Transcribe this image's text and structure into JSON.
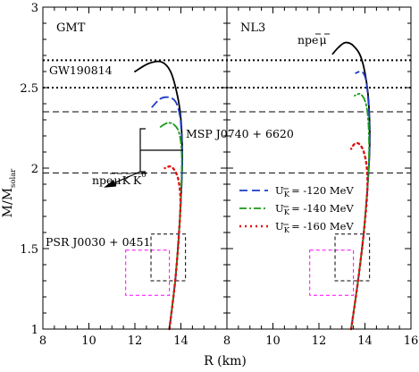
{
  "chart_data": {
    "type": "line",
    "xlabel": "R (km)",
    "ylabel": "M/M",
    "ylabel_sub": "solar",
    "x_ticks_left": [
      "8",
      "10",
      "12",
      "14"
    ],
    "x_ticks_right": [
      "8",
      "10",
      "12",
      "14",
      "16"
    ],
    "y_ticks": [
      "1",
      "1.5",
      "2",
      "2.5",
      "3"
    ],
    "xlim": [
      8,
      16
    ],
    "ylim": [
      1,
      3
    ],
    "panels": [
      {
        "label": "GMT",
        "series": [
          {
            "key": "npe_mu",
            "points": [
              [
                13.5,
                1.0
              ],
              [
                13.75,
                1.3
              ],
              [
                13.92,
                1.6
              ],
              [
                14.03,
                1.9
              ],
              [
                14.06,
                2.1
              ],
              [
                14.0,
                2.3
              ],
              [
                13.85,
                2.45
              ],
              [
                13.55,
                2.6
              ],
              [
                13.15,
                2.66
              ],
              [
                12.6,
                2.65
              ],
              [
                12.0,
                2.6
              ]
            ]
          },
          {
            "key": "UK_120",
            "points": [
              [
                13.5,
                1.0
              ],
              [
                13.75,
                1.3
              ],
              [
                13.92,
                1.6
              ],
              [
                14.03,
                1.9
              ],
              [
                14.05,
                2.1
              ],
              [
                13.98,
                2.3
              ],
              [
                13.78,
                2.41
              ],
              [
                13.45,
                2.44
              ],
              [
                13.1,
                2.43
              ],
              [
                12.75,
                2.38
              ]
            ]
          },
          {
            "key": "UK_140",
            "points": [
              [
                13.5,
                1.0
              ],
              [
                13.75,
                1.3
              ],
              [
                13.92,
                1.6
              ],
              [
                14.02,
                1.9
              ],
              [
                14.03,
                2.1
              ],
              [
                13.92,
                2.22
              ],
              [
                13.7,
                2.27
              ],
              [
                13.4,
                2.28
              ],
              [
                13.05,
                2.25
              ]
            ]
          },
          {
            "key": "UK_160",
            "points": [
              [
                13.5,
                1.0
              ],
              [
                13.75,
                1.3
              ],
              [
                13.92,
                1.6
              ],
              [
                13.98,
                1.8
              ],
              [
                13.9,
                1.92
              ],
              [
                13.75,
                1.98
              ],
              [
                13.55,
                2.01
              ],
              [
                13.3,
                2.0
              ]
            ]
          }
        ]
      },
      {
        "label": "NL3",
        "series": [
          {
            "key": "npe_mu",
            "points": [
              [
                13.4,
                1.0
              ],
              [
                13.7,
                1.3
              ],
              [
                13.95,
                1.6
              ],
              [
                14.12,
                1.9
              ],
              [
                14.2,
                2.1
              ],
              [
                14.2,
                2.3
              ],
              [
                14.1,
                2.5
              ],
              [
                13.85,
                2.68
              ],
              [
                13.5,
                2.76
              ],
              [
                13.15,
                2.78
              ],
              [
                12.85,
                2.75
              ],
              [
                12.6,
                2.71
              ]
            ]
          },
          {
            "key": "UK_120",
            "points": [
              [
                13.4,
                1.0
              ],
              [
                13.7,
                1.3
              ],
              [
                13.95,
                1.6
              ],
              [
                14.12,
                1.9
              ],
              [
                14.19,
                2.1
              ],
              [
                14.19,
                2.3
              ],
              [
                14.12,
                2.46
              ],
              [
                14.02,
                2.56
              ],
              [
                13.85,
                2.6
              ],
              [
                13.6,
                2.59
              ]
            ]
          },
          {
            "key": "UK_140",
            "points": [
              [
                13.4,
                1.0
              ],
              [
                13.7,
                1.3
              ],
              [
                13.95,
                1.6
              ],
              [
                14.12,
                1.9
              ],
              [
                14.18,
                2.1
              ],
              [
                14.14,
                2.3
              ],
              [
                14.02,
                2.41
              ],
              [
                13.8,
                2.46
              ],
              [
                13.55,
                2.45
              ]
            ]
          },
          {
            "key": "UK_160",
            "points": [
              [
                13.4,
                1.0
              ],
              [
                13.7,
                1.3
              ],
              [
                13.95,
                1.6
              ],
              [
                14.1,
                1.85
              ],
              [
                14.08,
                2.0
              ],
              [
                13.95,
                2.1
              ],
              [
                13.75,
                2.15
              ],
              [
                13.55,
                2.15
              ],
              [
                13.4,
                2.12
              ]
            ]
          }
        ]
      }
    ],
    "legend": [
      {
        "key": "UK_120",
        "text": "= -120 MeV",
        "color": "#1f3cc8",
        "dash": "9 5"
      },
      {
        "key": "UK_140",
        "text": "= -140 MeV",
        "color": "#1a9a1a",
        "dash": "8 3 2 3"
      },
      {
        "key": "UK_160",
        "text": "= -160 MeV",
        "color": "#e01010",
        "dash": "2 4"
      }
    ],
    "legend_symbol": "U",
    "legend_sub": "K",
    "black_color": "#000000",
    "hlines": [
      {
        "label": "GW190814",
        "y_low": 2.5,
        "y_high": 2.67,
        "style": "dotted"
      },
      {
        "label": "MSP J0740 + 6620",
        "y_low": 1.97,
        "y_high": 2.35,
        "style": "dashed"
      }
    ],
    "psr_label": "PSR J0030 + 0451",
    "psr_boxes": [
      {
        "color": "#ff00ff",
        "x": [
          11.6,
          13.5
        ],
        "y": [
          1.21,
          1.49
        ]
      },
      {
        "color": "#000000",
        "x": [
          12.7,
          14.2
        ],
        "y": [
          1.3,
          1.59
        ]
      }
    ],
    "annotations": {
      "gmt_lower": "npe",
      "nl3_upper": "npe"
    }
  }
}
